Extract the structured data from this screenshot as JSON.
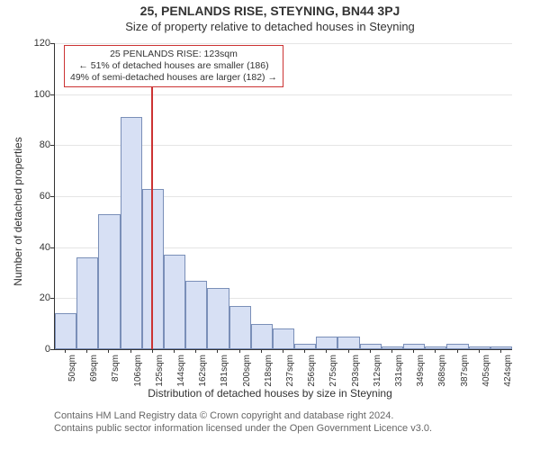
{
  "header": {
    "address_line": "25, PENLANDS RISE, STEYNING, BN44 3PJ",
    "subtitle": "Size of property relative to detached houses in Steyning"
  },
  "annotation": {
    "line1": "25 PENLANDS RISE: 123sqm",
    "line2": "← 51% of detached houses are smaller (186)",
    "line3": "49% of semi-detached houses are larger (182) →",
    "border_color": "#cc3333",
    "fontsize": 10.5
  },
  "chart": {
    "type": "histogram",
    "y_axis_label": "Number of detached properties",
    "x_axis_label": "Distribution of detached houses by size in Steyning",
    "ylim": [
      0,
      120
    ],
    "ytick_step": 20,
    "y_grid_color": "#e5e5e5",
    "axis_color": "#333333",
    "bar_fill": "#d7e0f4",
    "bar_border": "#7a8fb8",
    "reference_line_color": "#cc3333",
    "reference_x_value": 123,
    "categories": [
      "50sqm",
      "69sqm",
      "87sqm",
      "106sqm",
      "125sqm",
      "144sqm",
      "162sqm",
      "181sqm",
      "200sqm",
      "218sqm",
      "237sqm",
      "256sqm",
      "275sqm",
      "293sqm",
      "312sqm",
      "331sqm",
      "349sqm",
      "368sqm",
      "387sqm",
      "405sqm",
      "424sqm"
    ],
    "values": [
      14,
      36,
      53,
      91,
      63,
      37,
      27,
      24,
      17,
      10,
      8,
      2,
      5,
      5,
      2,
      1,
      2,
      1,
      2,
      1,
      1
    ],
    "tick_fontsize": 10,
    "axis_label_fontsize": 12,
    "background_color": "#ffffff"
  },
  "attribution": {
    "line1": "Contains HM Land Registry data © Crown copyright and database right 2024.",
    "line2": "Contains public sector information licensed under the Open Government Licence v3.0.",
    "color": "#666666",
    "fontsize": 11
  }
}
